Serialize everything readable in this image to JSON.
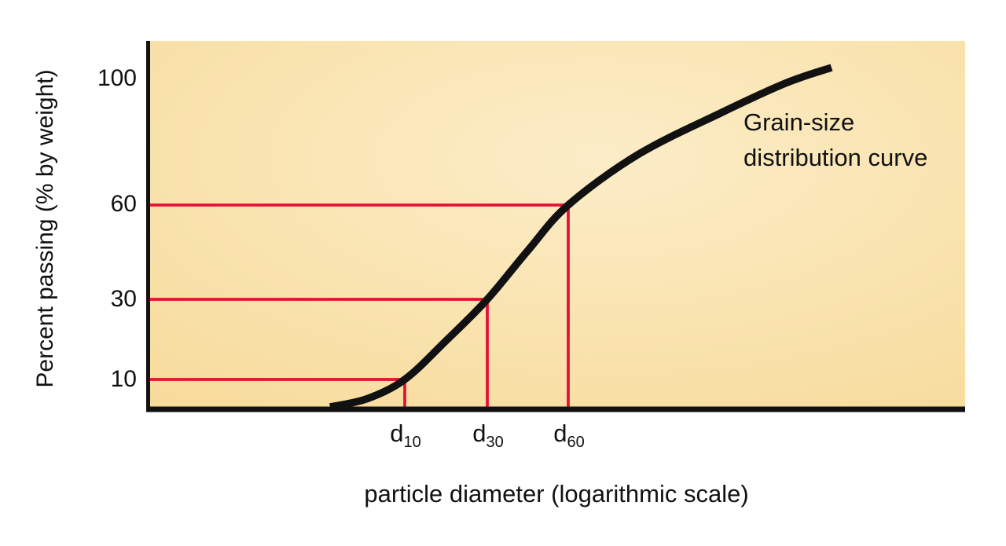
{
  "chart_data": {
    "type": "line",
    "title": "",
    "xlabel": "particle diameter (logarithmic scale)",
    "ylabel": "Percent passing (% by weight)",
    "x_scale": "logarithmic (no numeric tick labels shown)",
    "ylim": [
      0,
      100
    ],
    "grid": false,
    "annotation": {
      "line1": "Grain-size",
      "line2": "distribution curve"
    },
    "yticks": [
      {
        "label": "100",
        "value": 100
      },
      {
        "label": "60",
        "value": 60
      },
      {
        "label": "30",
        "value": 30
      },
      {
        "label": "10",
        "value": 10
      }
    ],
    "guides": [
      {
        "percent": 10,
        "x_frac": 0.3144,
        "label_base": "d",
        "label_sub": "10"
      },
      {
        "percent": 30,
        "x_frac": 0.4154,
        "label_base": "d",
        "label_sub": "30"
      },
      {
        "percent": 60,
        "x_frac": 0.5144,
        "label_base": "d",
        "label_sub": "60"
      }
    ],
    "curve_points": [
      {
        "x_frac": 0.2231,
        "percent": 0.8
      },
      {
        "x_frac": 0.268,
        "percent": 3.5
      },
      {
        "x_frac": 0.3144,
        "percent": 10
      },
      {
        "x_frac": 0.364,
        "percent": 19.5
      },
      {
        "x_frac": 0.4154,
        "percent": 30
      },
      {
        "x_frac": 0.465,
        "percent": 45.5
      },
      {
        "x_frac": 0.5144,
        "percent": 60
      },
      {
        "x_frac": 0.6,
        "percent": 76
      },
      {
        "x_frac": 0.7,
        "percent": 89
      },
      {
        "x_frac": 0.78,
        "percent": 98.5
      },
      {
        "x_frac": 0.8365,
        "percent": 103.5
      }
    ],
    "colors": {
      "guide_red": "#e31237",
      "curve_black": "#111111",
      "axis_black": "#111111",
      "plot_bg_outer": "#f6d996",
      "plot_bg_inner": "#fcedc8",
      "page_bg": "#ffffff",
      "text": "#111111"
    }
  }
}
